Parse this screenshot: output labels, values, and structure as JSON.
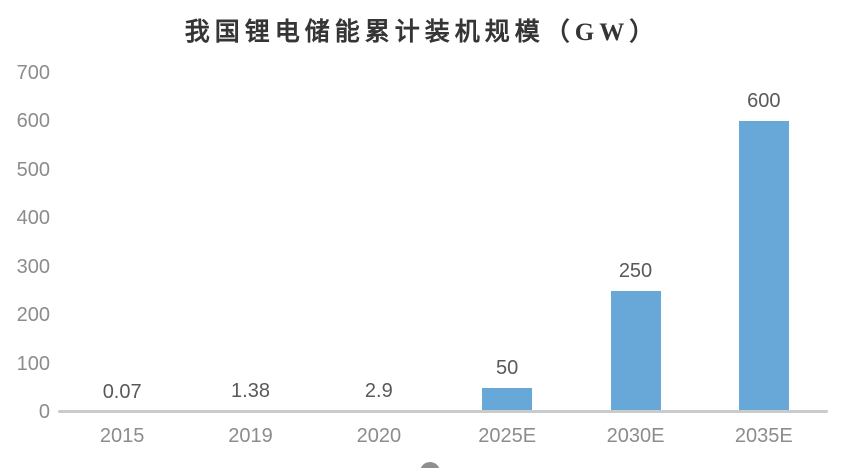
{
  "chart_data": {
    "type": "bar",
    "title": "我国锂电储能累计装机规模（GW）",
    "categories": [
      "2015",
      "2019",
      "2020",
      "2025E",
      "2030E",
      "2035E"
    ],
    "values": [
      0.07,
      1.38,
      2.9,
      50,
      250,
      600
    ],
    "value_labels": [
      "0.07",
      "1.38",
      "2.9",
      "50",
      "250",
      "600"
    ],
    "xlabel": "",
    "ylabel": "",
    "ylim": [
      0,
      700
    ],
    "yticks": [
      0,
      100,
      200,
      300,
      400,
      500,
      600,
      700
    ],
    "grid": "off",
    "legend": "none",
    "bar_color": "#68a8d8",
    "axis_line_color": "#c9cccc",
    "tick_label_color": "#8c8c8c",
    "value_label_color": "#595959",
    "title_color": "#353535"
  }
}
